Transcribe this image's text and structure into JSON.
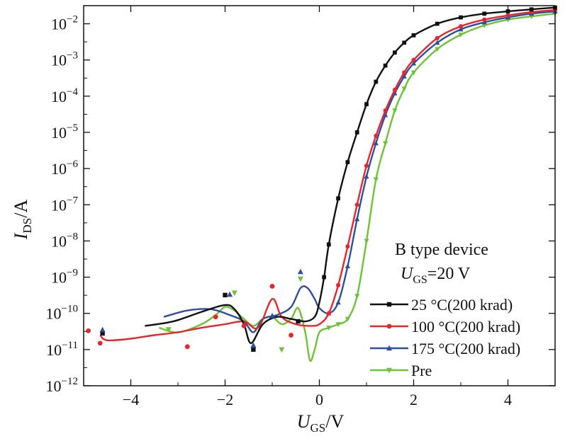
{
  "chart_data": {
    "type": "line",
    "xlabel": {
      "main": "U",
      "sub": "GS",
      "unit": "/V"
    },
    "ylabel": {
      "main": "I",
      "sub": "DS",
      "unit": "/A"
    },
    "xlim": [
      -5,
      5
    ],
    "ylim_log10": [
      -12,
      -1.5
    ],
    "y_scale": "log",
    "x_ticks": [
      -4,
      -2,
      0,
      2,
      4
    ],
    "x_tick_labels": [
      "−4",
      "−2",
      "0",
      "2",
      "4"
    ],
    "y_ticks": [
      -12,
      -11,
      -10,
      -9,
      -8,
      -7,
      -6,
      -5,
      -4,
      -3,
      -2
    ],
    "annotation": {
      "line1": "B type device",
      "line2_main": "U",
      "line2_sub": "GS",
      "line2_rest": "=20 V"
    },
    "legend_position": "bottom-right",
    "series": [
      {
        "name": "25 °C(200 krad)",
        "color": "#111111",
        "marker": "square",
        "x": [
          -3.7,
          -3.1,
          -2.5,
          -2.0,
          -1.8,
          -1.6,
          -1.45,
          -1.2,
          -0.9,
          -0.6,
          -0.3,
          -0.1,
          0.0,
          0.1,
          0.2,
          0.4,
          0.6,
          0.8,
          1.0,
          1.2,
          1.4,
          1.6,
          1.8,
          2.0,
          2.5,
          3.0,
          3.5,
          4.0,
          4.5,
          5.0
        ],
        "y": [
          4.5e-11,
          6e-11,
          1.1e-10,
          1.7e-10,
          1.3e-10,
          5e-11,
          1.5e-11,
          5e-11,
          8e-11,
          7e-11,
          6e-11,
          8e-11,
          2e-10,
          1e-09,
          8e-09,
          1.5e-07,
          1.5e-06,
          1e-05,
          6e-05,
          0.00025,
          0.0007,
          0.0016,
          0.003,
          0.0048,
          0.01,
          0.015,
          0.019,
          0.022,
          0.025,
          0.028
        ]
      },
      {
        "name": "100 °C(200 krad)",
        "color": "#e8252b",
        "marker": "circle",
        "x": [
          -4.65,
          -4.5,
          -4.0,
          -3.5,
          -3.0,
          -2.5,
          -2.0,
          -1.6,
          -1.3,
          -1.0,
          -0.8,
          -0.5,
          -0.2,
          0.0,
          0.2,
          0.4,
          0.6,
          0.8,
          1.0,
          1.2,
          1.4,
          1.6,
          1.8,
          2.0,
          2.5,
          3.0,
          3.5,
          4.0,
          4.5,
          5.0
        ],
        "y": [
          2.5e-11,
          1.8e-11,
          2e-11,
          2.5e-11,
          3e-11,
          4e-11,
          5e-11,
          6e-11,
          4e-11,
          2.5e-10,
          8e-11,
          5e-11,
          4.5e-11,
          5e-11,
          1e-10,
          6e-10,
          7e-09,
          1e-07,
          1.2e-06,
          8e-06,
          4e-05,
          0.00015,
          0.00045,
          0.001,
          0.004,
          0.0085,
          0.013,
          0.017,
          0.021,
          0.024
        ]
      },
      {
        "name": "175 °C(200 krad)",
        "color": "#2c4fa3",
        "marker": "triangle",
        "x": [
          -3.3,
          -2.8,
          -2.3,
          -1.9,
          -1.6,
          -1.4,
          -1.2,
          -0.9,
          -0.6,
          -0.4,
          -0.25,
          -0.1,
          0.0,
          0.2,
          0.4,
          0.6,
          0.8,
          1.0,
          1.2,
          1.4,
          1.6,
          1.8,
          2.0,
          2.5,
          3.0,
          3.5,
          4.0,
          4.5,
          5.0
        ],
        "y": [
          8e-11,
          1.2e-10,
          1.3e-10,
          9e-11,
          6e-11,
          3e-11,
          7e-11,
          9e-11,
          1.5e-10,
          5e-10,
          5e-10,
          2.5e-10,
          1.4e-10,
          1e-10,
          2e-10,
          2e-09,
          4e-08,
          6e-07,
          5e-06,
          3e-05,
          0.00012,
          0.00035,
          0.0008,
          0.003,
          0.007,
          0.011,
          0.015,
          0.019,
          0.022
        ]
      },
      {
        "name": "Pre",
        "color": "#6cc435",
        "marker": "triangle-down",
        "x": [
          -3.4,
          -3.0,
          -2.5,
          -2.2,
          -2.0,
          -1.8,
          -1.6,
          -1.4,
          -1.2,
          -1.0,
          -0.8,
          -0.6,
          -0.45,
          -0.3,
          -0.2,
          -0.1,
          0.0,
          0.2,
          0.4,
          0.6,
          0.8,
          1.0,
          1.2,
          1.4,
          1.6,
          1.8,
          2.0,
          2.5,
          3.0,
          3.5,
          4.0,
          4.5,
          5.0
        ],
        "y": [
          4e-11,
          3e-11,
          5e-11,
          9e-11,
          1.5e-10,
          1.2e-10,
          7e-11,
          4.5e-11,
          7e-11,
          8e-11,
          5e-11,
          7e-11,
          1.4e-10,
          3e-11,
          5e-12,
          1e-11,
          3e-11,
          4e-11,
          5e-11,
          7e-11,
          3e-10,
          1e-08,
          5e-07,
          5e-06,
          4e-05,
          0.00016,
          0.00045,
          0.002,
          0.005,
          0.009,
          0.013,
          0.016,
          0.019
        ]
      }
    ],
    "scatter_outliers": [
      {
        "series": 0,
        "points": [
          [
            -4.6,
            2.8e-11
          ],
          [
            -2.0,
            3.2e-10
          ],
          [
            -1.4,
            1e-11
          ],
          [
            -0.45,
            6e-11
          ]
        ]
      },
      {
        "series": 1,
        "points": [
          [
            -4.9,
            3.3e-11
          ],
          [
            -4.65,
            1.5e-11
          ],
          [
            -2.8,
            1.2e-11
          ],
          [
            -2.2,
            8e-11
          ],
          [
            -1.6,
            4.5e-11
          ],
          [
            -1.0,
            5.6e-10
          ],
          [
            -0.6,
            2.5e-11
          ]
        ]
      },
      {
        "series": 2,
        "points": [
          [
            -4.6,
            3.5e-11
          ],
          [
            -1.9,
            3.3e-10
          ],
          [
            -1.4,
            1.3e-11
          ],
          [
            -1.0,
            8.5e-11
          ],
          [
            -0.4,
            1.4e-09
          ]
        ]
      },
      {
        "series": 3,
        "points": [
          [
            -1.8,
            3.7e-10
          ],
          [
            -0.8,
            1e-11
          ],
          [
            -0.4,
            9e-10
          ],
          [
            -3.2,
            3.6e-11
          ]
        ]
      }
    ]
  }
}
